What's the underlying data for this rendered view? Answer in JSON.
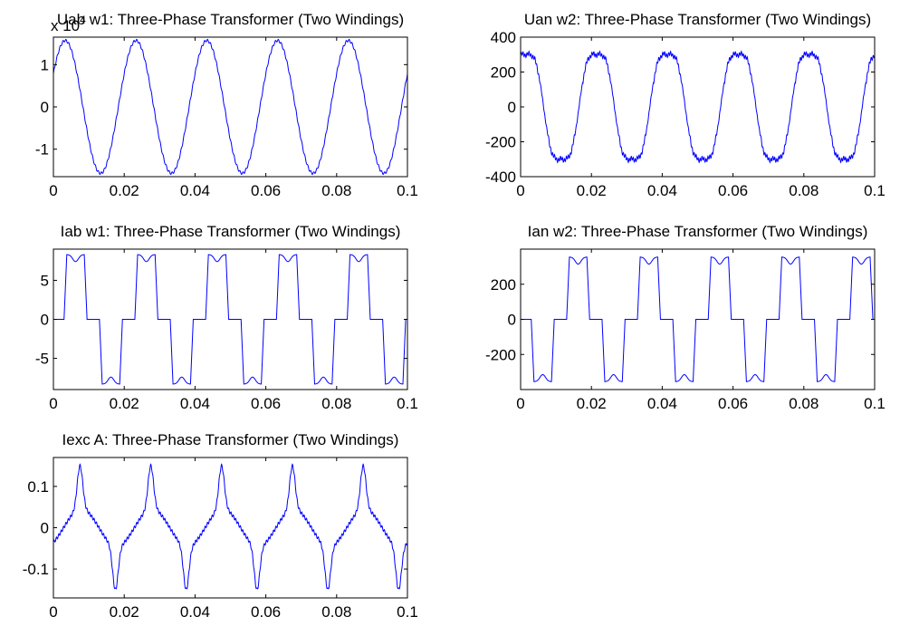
{
  "chart_data": [
    {
      "type": "line",
      "title": "Uab w1: Three-Phase Transformer (Two Windings)",
      "xlabel": "",
      "ylabel": "",
      "xlim": [
        0,
        0.1
      ],
      "ylim": [
        -1.65,
        1.65
      ],
      "xticks": [
        0,
        0.02,
        0.04,
        0.06,
        0.08,
        0.1
      ],
      "xtick_labels": [
        "0",
        "0.02",
        "0.04",
        "0.06",
        "0.08",
        "0.1"
      ],
      "yticks": [
        1,
        0,
        -1
      ],
      "ytick_labels": [
        "1",
        "0",
        "-1"
      ],
      "exponent_label": "x 10",
      "exponent_power": "4",
      "grid": false,
      "line_color": "#0000ff",
      "series": [
        {
          "waveform": "sine",
          "frequency_hz": 50,
          "amplitude": 1.57,
          "phase_deg": 30,
          "ripple_amplitude": 0.03,
          "ripple_harmonic": 24
        }
      ]
    },
    {
      "type": "line",
      "title": "Uan w2: Three-Phase Transformer (Two Windings)",
      "xlabel": "",
      "ylabel": "",
      "xlim": [
        0,
        0.1
      ],
      "ylim": [
        -400,
        400
      ],
      "xticks": [
        0,
        0.02,
        0.04,
        0.06,
        0.08,
        0.1
      ],
      "xtick_labels": [
        "0",
        "0.02",
        "0.04",
        "0.06",
        "0.08",
        "0.1"
      ],
      "yticks": [
        400,
        200,
        0,
        -200,
        -400
      ],
      "ytick_labels": [
        "400",
        "200",
        "0",
        "-200",
        "-400"
      ],
      "grid": false,
      "line_color": "#0000ff",
      "series": [
        {
          "waveform": "distorted-sine",
          "frequency_hz": 50,
          "amplitude": 355,
          "phase_deg": 0,
          "ripple_amplitude": 18,
          "ripple_harmonic": 36
        }
      ]
    },
    {
      "type": "line",
      "title": "Iab w1: Three-Phase Transformer (Two Windings)",
      "xlabel": "",
      "ylabel": "",
      "xlim": [
        0,
        0.1
      ],
      "ylim": [
        -9,
        9
      ],
      "xticks": [
        0,
        0.02,
        0.04,
        0.06,
        0.08,
        0.1
      ],
      "xtick_labels": [
        "0",
        "0.02",
        "0.04",
        "0.06",
        "0.08",
        "0.1"
      ],
      "yticks": [
        5,
        0,
        -5
      ],
      "ytick_labels": [
        "5",
        "0",
        "-5"
      ],
      "grid": false,
      "line_color": "#0000ff",
      "series": [
        {
          "waveform": "stepped",
          "frequency_hz": 50,
          "amplitude": 8.3,
          "dip": 0.9,
          "flat_zero_s": 0.0035,
          "phase_shift_s": 0.0005
        }
      ]
    },
    {
      "type": "line",
      "title": "Ian w2: Three-Phase Transformer (Two Windings)",
      "xlabel": "",
      "ylabel": "",
      "xlim": [
        0,
        0.1
      ],
      "ylim": [
        -400,
        400
      ],
      "xticks": [
        0,
        0.02,
        0.04,
        0.06,
        0.08,
        0.1
      ],
      "xtick_labels": [
        "0",
        "0.02",
        "0.04",
        "0.06",
        "0.08",
        "0.1"
      ],
      "yticks": [
        200,
        0,
        -200
      ],
      "ytick_labels": [
        "200",
        "0",
        "-200"
      ],
      "grid": false,
      "line_color": "#0000ff",
      "series": [
        {
          "waveform": "stepped",
          "frequency_hz": 50,
          "amplitude": 355,
          "dip": 40,
          "flat_zero_s": 0.0035,
          "phase_shift_s": 0.0105
        }
      ]
    },
    {
      "type": "line",
      "title": "Iexc A: Three-Phase Transformer (Two Windings)",
      "xlabel": "",
      "ylabel": "",
      "xlim": [
        0,
        0.1
      ],
      "ylim": [
        -0.17,
        0.17
      ],
      "xticks": [
        0,
        0.02,
        0.04,
        0.06,
        0.08,
        0.1
      ],
      "xtick_labels": [
        "0",
        "0.02",
        "0.04",
        "0.06",
        "0.08",
        "0.1"
      ],
      "yticks": [
        0.1,
        0,
        -0.1
      ],
      "ytick_labels": [
        "0.1",
        "0",
        "-0.1"
      ],
      "grid": false,
      "line_color": "#0000ff",
      "series": [
        {
          "waveform": "excitation",
          "frequency_hz": 50,
          "base_amplitude": 0.045,
          "peak_amplitude": 0.105,
          "peak_time_s": 0.0075,
          "peak_width_s": 0.0011
        }
      ]
    }
  ]
}
